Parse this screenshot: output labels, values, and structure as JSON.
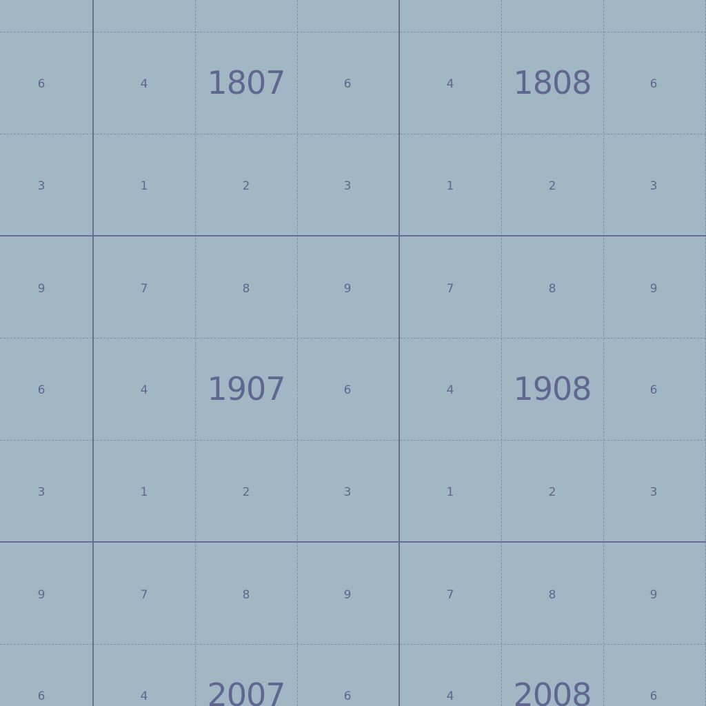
{
  "colors": {
    "background": "#a1b8c4",
    "major_line": "#666c92",
    "minor_line": "#7f8ea6",
    "text": "#5f6690"
  },
  "grid": {
    "rows": [
      {
        "cells": [
          "6",
          "4",
          "",
          "6",
          "4",
          "",
          "6"
        ]
      },
      {
        "cells": [
          "3",
          "1",
          "2",
          "3",
          "1",
          "2",
          "3"
        ]
      },
      {
        "cells": [
          "9",
          "7",
          "8",
          "9",
          "7",
          "8",
          "9"
        ]
      },
      {
        "cells": [
          "6",
          "4",
          "",
          "6",
          "4",
          "",
          "6"
        ]
      },
      {
        "cells": [
          "3",
          "1",
          "2",
          "3",
          "1",
          "2",
          "3"
        ]
      },
      {
        "cells": [
          "9",
          "7",
          "8",
          "9",
          "7",
          "8",
          "9"
        ]
      },
      {
        "cells": [
          "6",
          "4",
          "",
          "6",
          "4",
          "",
          "6"
        ]
      }
    ],
    "sheet_labels": [
      {
        "row": 0,
        "col": 2,
        "text": "1807"
      },
      {
        "row": 0,
        "col": 5,
        "text": "1808"
      },
      {
        "row": 3,
        "col": 2,
        "text": "1907"
      },
      {
        "row": 3,
        "col": 5,
        "text": "1908"
      },
      {
        "row": 6,
        "col": 2,
        "text": "2007"
      },
      {
        "row": 6,
        "col": 5,
        "text": "2008"
      }
    ]
  }
}
